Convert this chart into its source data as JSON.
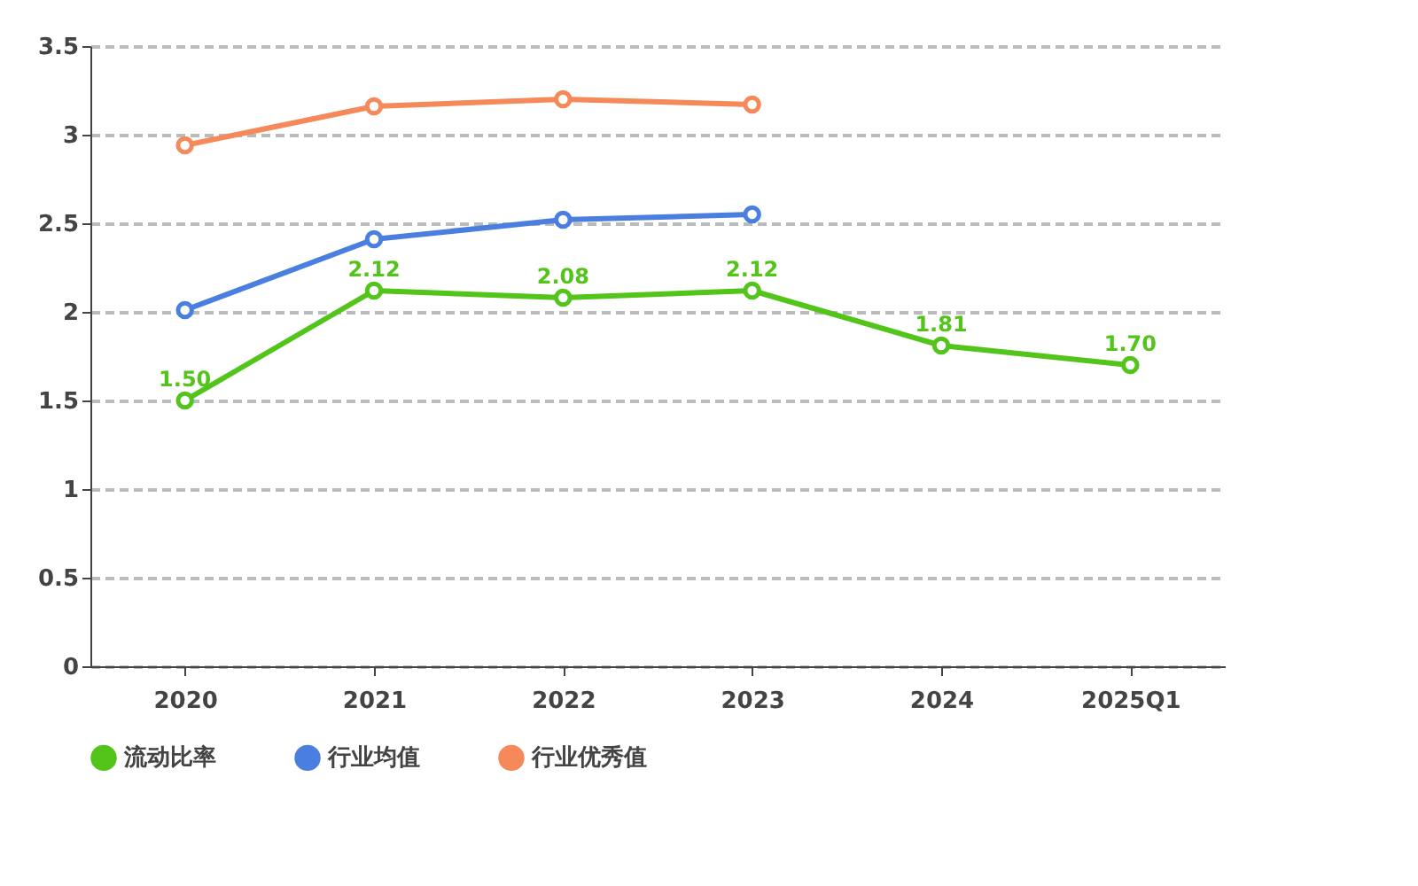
{
  "chart_data": {
    "type": "line",
    "categories": [
      "2020",
      "2021",
      "2022",
      "2023",
      "2024",
      "2025Q1"
    ],
    "series": [
      {
        "name": "流动比率",
        "color": "#52c41a",
        "values": [
          1.5,
          2.12,
          2.08,
          2.12,
          1.81,
          1.7
        ],
        "value_labels": [
          "1.50",
          "2.12",
          "2.08",
          "2.12",
          "1.81",
          "1.70"
        ]
      },
      {
        "name": "行业均值",
        "color": "#4a7fe0",
        "values": [
          2.01,
          2.41,
          2.52,
          2.55,
          null,
          null
        ]
      },
      {
        "name": "行业优秀值",
        "color": "#f5895a",
        "values": [
          2.94,
          3.16,
          3.2,
          3.17,
          null,
          null
        ]
      }
    ],
    "ylim": [
      0,
      3.5
    ],
    "yticks": [
      0,
      0.5,
      1,
      1.5,
      2,
      2.5,
      3,
      3.5
    ],
    "grid": "y",
    "legend": "bottom",
    "marker": "circle",
    "line_style": "solid"
  }
}
